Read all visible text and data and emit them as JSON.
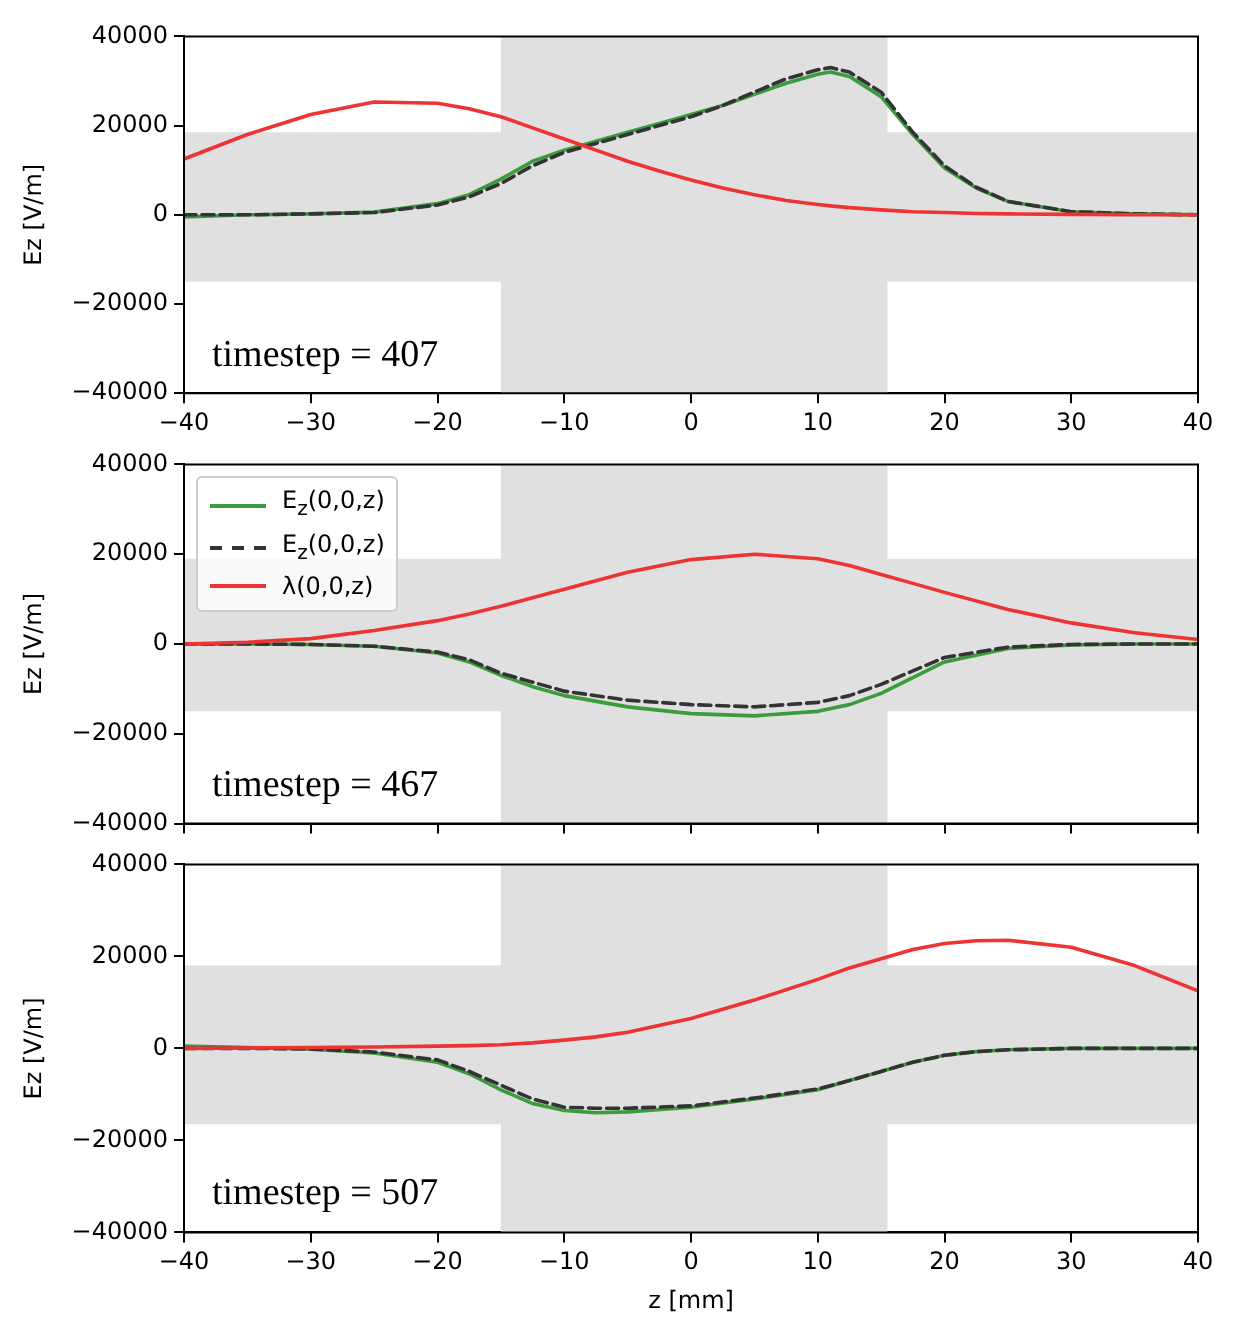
{
  "chart_data": [
    {
      "type": "line",
      "ylabel": "Ez [V/m]",
      "xlim": [
        -40,
        40
      ],
      "xticks": [
        -40,
        -30,
        -20,
        -10,
        0,
        10,
        20,
        30,
        40
      ],
      "ylim": [
        -40000,
        40000
      ],
      "yticks": [
        -40000,
        -20000,
        0,
        20000,
        40000
      ],
      "annotations": [
        "timestep = 407"
      ],
      "bands": [
        {
          "axis": "x",
          "from": -15,
          "to": 15.5,
          "color": "#e0e0e0"
        },
        {
          "axis": "y",
          "from": -15000,
          "to": 18500,
          "color": "#e0e0e0"
        }
      ],
      "x": [
        -40,
        -35,
        -30,
        -25,
        -20,
        -17.5,
        -15,
        -12.5,
        -10,
        -7.5,
        -5,
        -2.5,
        0,
        2.5,
        5,
        7.5,
        10,
        11,
        12.5,
        15,
        17.5,
        20,
        22.5,
        25,
        30,
        35,
        40
      ],
      "series": [
        {
          "color": "#3c9b3c",
          "values": [
            -500,
            0,
            200,
            600,
            2500,
            4500,
            8000,
            12000,
            14500,
            16500,
            18500,
            20500,
            22500,
            24500,
            27000,
            29500,
            31500,
            32000,
            31000,
            26500,
            18000,
            10500,
            6000,
            3000,
            700,
            200,
            0
          ]
        },
        {
          "color": "#333333",
          "line_style": "dashed",
          "values": [
            0,
            0,
            200,
            500,
            2200,
            4000,
            7000,
            11000,
            14000,
            16000,
            18000,
            20000,
            22000,
            24500,
            27500,
            30500,
            32500,
            33000,
            32000,
            27500,
            18500,
            11000,
            6200,
            3000,
            700,
            200,
            0
          ]
        },
        {
          "color": "#ee3333",
          "values": [
            12500,
            18000,
            22500,
            25300,
            25000,
            23800,
            22000,
            19500,
            17000,
            14500,
            12000,
            9800,
            7800,
            6000,
            4500,
            3200,
            2300,
            2000,
            1600,
            1100,
            700,
            500,
            300,
            200,
            100,
            0,
            0
          ]
        }
      ]
    },
    {
      "type": "line",
      "ylabel": "Ez [V/m]",
      "xlim": [
        -40,
        40
      ],
      "xticks": [
        -40,
        -30,
        -20,
        -10,
        0,
        10,
        20,
        30,
        40
      ],
      "ylim": [
        -40000,
        40000
      ],
      "yticks": [
        -40000,
        -20000,
        0,
        20000,
        40000
      ],
      "tick_labels": "y",
      "annotations": [
        "timestep = 467"
      ],
      "legend": "top left",
      "bands": [
        {
          "axis": "x",
          "from": -15,
          "to": 15.5,
          "color": "#e0e0e0"
        },
        {
          "axis": "y",
          "from": -15000,
          "to": 19000,
          "color": "#e0e0e0"
        }
      ],
      "x": [
        -40,
        -35,
        -30,
        -25,
        -20,
        -17.5,
        -15,
        -12.5,
        -10,
        -5,
        0,
        5,
        10,
        12.5,
        15,
        17.5,
        20,
        25,
        30,
        35,
        40
      ],
      "series": [
        {
          "name": "E$_{z}$(0,0,z)",
          "color": "#3c9b3c",
          "values": [
            0,
            0,
            -100,
            -500,
            -2000,
            -4000,
            -7000,
            -9500,
            -11500,
            -14000,
            -15500,
            -16000,
            -15000,
            -13500,
            -11000,
            -7500,
            -4000,
            -1000,
            -200,
            0,
            0
          ]
        },
        {
          "name": "E$_{z}$(0,0,z)",
          "color": "#333333",
          "line_style": "dashed",
          "values": [
            0,
            0,
            -100,
            -500,
            -1800,
            -3500,
            -6500,
            -8500,
            -10500,
            -12500,
            -13500,
            -14000,
            -13000,
            -11500,
            -9000,
            -6000,
            -3000,
            -700,
            -100,
            0,
            0
          ]
        },
        {
          "name": "λ(0,0,z)",
          "color": "#ee3333",
          "values": [
            0,
            400,
            1200,
            3000,
            5200,
            6700,
            8400,
            10300,
            12200,
            16000,
            18800,
            20000,
            19000,
            17500,
            15500,
            13500,
            11500,
            7700,
            4700,
            2500,
            1000
          ]
        }
      ]
    },
    {
      "type": "line",
      "xlabel": "z [mm]",
      "ylabel": "Ez [V/m]",
      "xlim": [
        -40,
        40
      ],
      "xticks": [
        -40,
        -30,
        -20,
        -10,
        0,
        10,
        20,
        30,
        40
      ],
      "ylim": [
        -40000,
        40000
      ],
      "yticks": [
        -40000,
        -20000,
        0,
        20000,
        40000
      ],
      "annotations": [
        "timestep = 507"
      ],
      "bands": [
        {
          "axis": "x",
          "from": -15,
          "to": 15.5,
          "color": "#e0e0e0"
        },
        {
          "axis": "y",
          "from": -16500,
          "to": 18000,
          "color": "#e0e0e0"
        }
      ],
      "x": [
        -40,
        -35,
        -30,
        -25,
        -20,
        -17.5,
        -15,
        -12.5,
        -10,
        -7.5,
        -5,
        0,
        5,
        10,
        12.5,
        15,
        17.5,
        20,
        22.5,
        25,
        30,
        35,
        40
      ],
      "series": [
        {
          "color": "#3c9b3c",
          "values": [
            500,
            200,
            -200,
            -1000,
            -3000,
            -5500,
            -9000,
            -12000,
            -13500,
            -14000,
            -13800,
            -12800,
            -11000,
            -9000,
            -7000,
            -5000,
            -3000,
            -1500,
            -700,
            -300,
            0,
            0,
            0
          ]
        },
        {
          "color": "#333333",
          "line_style": "dashed",
          "values": [
            0,
            0,
            -100,
            -800,
            -2500,
            -5000,
            -8000,
            -11000,
            -12800,
            -13000,
            -13000,
            -12500,
            -10800,
            -8800,
            -7000,
            -5000,
            -3000,
            -1500,
            -700,
            -300,
            0,
            0,
            0
          ]
        },
        {
          "color": "#ee3333",
          "values": [
            0,
            100,
            200,
            300,
            500,
            600,
            800,
            1200,
            1800,
            2500,
            3500,
            6500,
            10500,
            15000,
            17500,
            19500,
            21500,
            22800,
            23400,
            23500,
            22000,
            18000,
            12500
          ]
        }
      ]
    }
  ]
}
